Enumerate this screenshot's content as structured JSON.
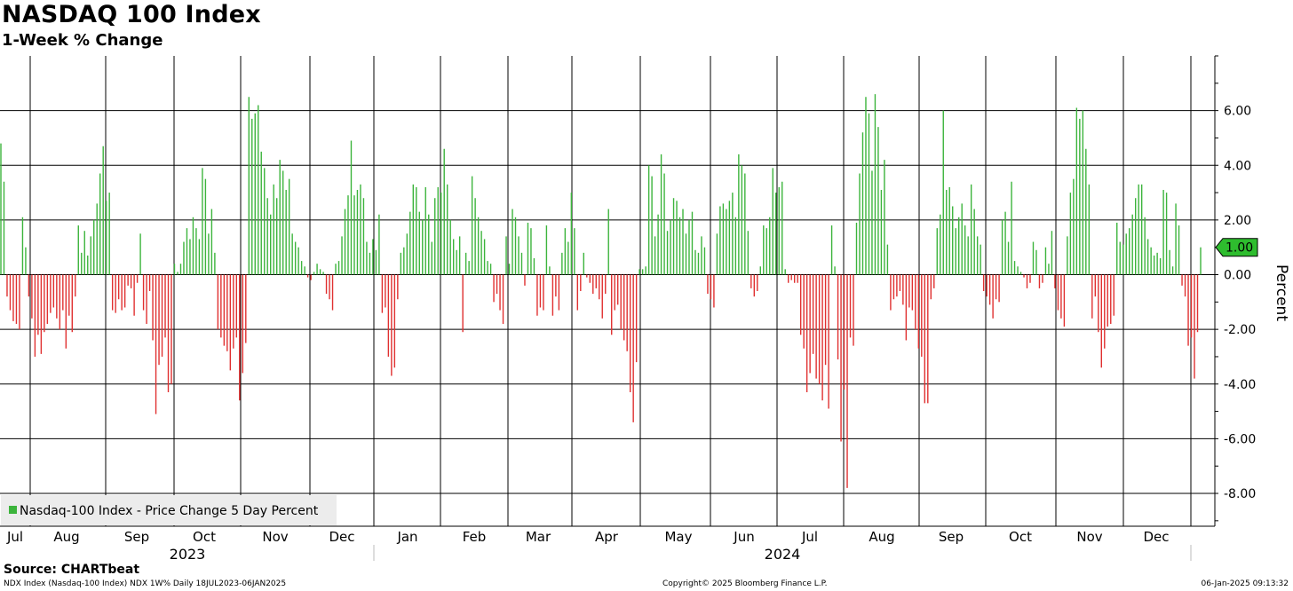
{
  "title": "NASDAQ 100 Index",
  "subtitle": "1-Week % Change",
  "source": "Source: CHARTbeat",
  "footer": {
    "left": "NDX Index (Nasdaq-100 Index) NDX 1W%  Daily 18JUL2023-06JAN2025",
    "center": "Copyright© 2025 Bloomberg Finance L.P.",
    "right": "06-Jan-2025 09:13:32"
  },
  "colors": {
    "positive": "#3cb43c",
    "negative": "#e03030",
    "grid": "#000000",
    "legend_bg": "#ececec",
    "last_tag": "#2ebd2e"
  },
  "chart_data": {
    "type": "bar",
    "title": "NASDAQ 100 Index",
    "subtitle": "1-Week % Change",
    "ylabel": "Percent",
    "ylim": [
      -9.2,
      8
    ],
    "yticks": [
      6,
      4,
      2,
      0,
      -2,
      -4,
      -6,
      -8
    ],
    "ytick_labels": [
      "6.00",
      "4.00",
      "2.00",
      "0.00",
      "-2.00",
      "-4.00",
      "-6.00",
      "-8.00"
    ],
    "legend": {
      "label": "Nasdaq-100 Index - Price Change 5 Day Percent",
      "position": "bottom-left"
    },
    "last_value": 1.0,
    "last_value_label": "1.00",
    "x_months": [
      "Jul",
      "Aug",
      "Sep",
      "Oct",
      "Nov",
      "Dec",
      "Jan",
      "Feb",
      "Mar",
      "Apr",
      "May",
      "Jun",
      "Jul",
      "Aug",
      "Sep",
      "Oct",
      "Nov",
      "Dec"
    ],
    "x_years": [
      "2023",
      "2024"
    ],
    "grid": true,
    "series": [
      {
        "name": "Nasdaq-100 Index - Price Change 5 Day Percent",
        "start_date": "2023-07-18",
        "frequency": "trading days",
        "values": [
          4.8,
          3.4,
          -0.8,
          -1.3,
          -1.7,
          -1.8,
          -2.0,
          2.1,
          1.0,
          -0.8,
          -1.6,
          -3.0,
          -2.2,
          -2.9,
          -2.1,
          -1.8,
          -1.4,
          -1.2,
          -1.6,
          -2.0,
          -1.3,
          -2.7,
          -1.5,
          -2.1,
          -0.8,
          1.8,
          0.8,
          1.6,
          0.7,
          1.4,
          2.0,
          2.6,
          3.7,
          4.7,
          2.7,
          3.0,
          -1.3,
          -1.4,
          -0.9,
          -1.3,
          -1.2,
          -0.4,
          -0.5,
          -1.5,
          -0.3,
          1.5,
          -1.3,
          -1.8,
          -0.6,
          -2.4,
          -5.1,
          -3.3,
          -3.0,
          -2.3,
          -4.3,
          -4.0,
          0.4,
          0.1,
          0.4,
          1.2,
          1.7,
          1.3,
          2.1,
          1.7,
          1.3,
          3.9,
          3.5,
          1.5,
          2.4,
          0.8,
          -2.0,
          -2.3,
          -2.6,
          -2.8,
          -3.5,
          -2.7,
          -2.3,
          -4.6,
          -3.6,
          -2.5,
          6.5,
          5.7,
          5.9,
          6.2,
          4.5,
          3.9,
          2.8,
          2.2,
          3.3,
          2.8,
          4.2,
          3.8,
          3.1,
          3.5,
          1.5,
          1.2,
          1.0,
          0.5,
          0.3,
          -0.1,
          -0.2,
          0.1,
          0.4,
          0.2,
          0.1,
          -0.7,
          -0.9,
          -1.3,
          0.4,
          0.5,
          1.4,
          2.4,
          2.9,
          4.9,
          2.9,
          3.1,
          3.3,
          2.8,
          1.2,
          0.8,
          1.3,
          0.9,
          2.2,
          -1.4,
          -1.2,
          -3.0,
          -3.7,
          -3.4,
          -0.9,
          0.8,
          1.0,
          1.5,
          2.3,
          3.3,
          3.2,
          2.3,
          2.0,
          3.2,
          2.2,
          1.2,
          2.8,
          3.2,
          3.0,
          4.6,
          3.3,
          2.0,
          1.3,
          0.9,
          1.4,
          -2.1,
          0.8,
          0.5,
          3.6,
          2.8,
          2.1,
          1.6,
          1.3,
          0.5,
          0.4,
          -1.0,
          -0.7,
          -1.3,
          -1.8,
          1.4,
          0.4,
          2.4,
          2.1,
          1.4,
          0.8,
          -0.4,
          1.9,
          1.7,
          0.6,
          -1.5,
          -1.2,
          -1.3,
          1.8,
          0.3,
          -1.5,
          -0.8,
          -1.3,
          0.8,
          1.7,
          1.2,
          3.0,
          1.7,
          -1.3,
          -0.6,
          0.8,
          -0.1,
          -0.3,
          -0.7,
          -0.5,
          -0.9,
          -1.6,
          -0.7,
          2.4,
          -2.2,
          -1.3,
          -1.1,
          -2.0,
          -2.4,
          -2.8,
          -4.3,
          -5.4,
          -3.2,
          0.2,
          0.2,
          0.3,
          4.0,
          3.6,
          1.4,
          2.2,
          4.4,
          3.7,
          1.6,
          2.0,
          2.8,
          2.7,
          2.1,
          2.4,
          1.5,
          2.0,
          2.3,
          0.9,
          0.8,
          1.4,
          1.0,
          -0.7,
          -0.9,
          -1.2,
          1.5,
          2.5,
          2.6,
          2.4,
          2.7,
          3.0,
          2.1,
          4.4,
          4.0,
          3.7,
          1.6,
          -0.5,
          -0.8,
          -0.6,
          0.3,
          1.8,
          1.7,
          2.1,
          3.9,
          3.0,
          3.2,
          3.4,
          0.2,
          -0.3,
          -0.2,
          -0.3,
          -0.3,
          -2.2,
          -2.7,
          -4.3,
          -3.6,
          -2.9,
          -3.8,
          -4.0,
          -4.6,
          -3.3,
          -4.9,
          1.8,
          0.3,
          -3.1,
          -6.1,
          -4.2,
          -7.8,
          -2.3,
          -2.6,
          1.9,
          3.7,
          5.2,
          6.5,
          5.9,
          3.8,
          6.6,
          5.4,
          3.1,
          4.2,
          1.1,
          -1.3,
          -0.9,
          -0.8,
          -0.6,
          -1.1,
          -2.4,
          -1.2,
          -1.3,
          -2.0,
          -2.7,
          -3.0,
          -4.7,
          -4.7,
          -0.9,
          -0.5,
          1.7,
          2.2,
          6.0,
          3.1,
          3.2,
          2.5,
          1.7,
          2.1,
          2.6,
          1.8,
          1.4,
          3.3,
          2.4,
          1.4,
          1.1,
          -0.6,
          -0.8,
          -1.1,
          -1.6,
          -0.9,
          -1.0,
          2.0,
          2.3,
          1.2,
          3.4,
          0.5,
          0.3,
          0.1,
          -0.1,
          -0.5,
          -0.3,
          1.2,
          0.9,
          -0.5,
          -0.3,
          1.0,
          0.4,
          1.6,
          -0.5,
          -1.3,
          -1.6,
          -1.9,
          1.4,
          3.0,
          3.5,
          6.1,
          5.7,
          6.0,
          4.6,
          3.3,
          -1.6,
          -0.8,
          -2.1,
          -3.4,
          -2.7,
          -1.9,
          -1.8,
          -1.5,
          1.9,
          1.2,
          1.1,
          1.5,
          1.7,
          2.2,
          2.8,
          3.3,
          3.3,
          2.1,
          1.3,
          1.0,
          0.7,
          0.8,
          0.6,
          3.1,
          3.0,
          0.9,
          0.3,
          2.6,
          1.8,
          -0.4,
          -0.8,
          -2.6,
          -2.3,
          -3.8,
          -2.1,
          1.0
        ]
      }
    ]
  }
}
